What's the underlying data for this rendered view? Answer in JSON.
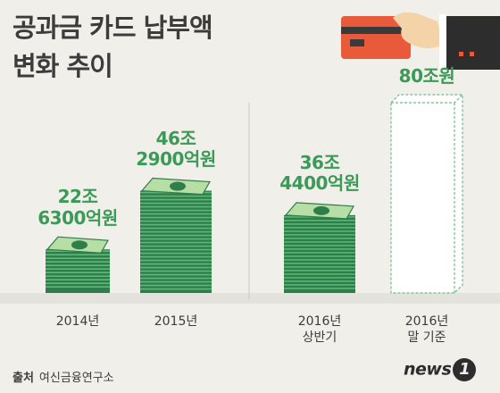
{
  "title": {
    "line1": "공과금 카드 납부액",
    "line2": "변화 추이"
  },
  "source": {
    "label": "출처",
    "text": "여신금융연구소"
  },
  "logo": {
    "text": "news",
    "mark": "1"
  },
  "colors": {
    "background": "#f0efe9",
    "value_text": "#3c9a58",
    "bill_dark": "#2f7d4a",
    "bill_light": "#5cba78",
    "bill_face": "#b7dfa5",
    "ground": "#e3e2dc",
    "dashed_outline": "#6fbd85"
  },
  "chart_data": {
    "type": "bar",
    "categories": [
      "2014년",
      "2015년",
      "2016년 상반기",
      "2016년 말 기준"
    ],
    "values": [
      22.63,
      46.29,
      36.44,
      80
    ],
    "value_labels": [
      [
        "22조",
        "6300억원"
      ],
      [
        "46조",
        "2900억원"
      ],
      [
        "36조",
        "4400억원"
      ],
      [
        "80조원"
      ]
    ],
    "category_labels": [
      [
        "2014년"
      ],
      [
        "2015년"
      ],
      [
        "2016년",
        "상반기"
      ],
      [
        "2016년",
        "말 기준"
      ]
    ],
    "projected": [
      false,
      false,
      false,
      true
    ],
    "ylim": [
      0,
      80
    ]
  }
}
